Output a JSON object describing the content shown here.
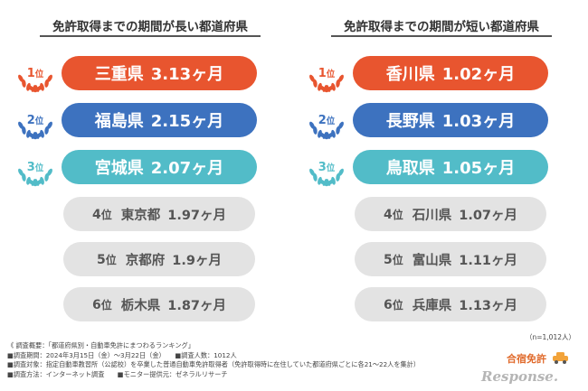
{
  "colors": {
    "rank1": "#e8552f",
    "rank2": "#3d72bf",
    "rank3": "#52bcc8",
    "gray_pill": "#e3e3e3"
  },
  "chart_data": [
    {
      "type": "table",
      "title": "免許取得までの期間が長い都道府県",
      "rank_unit": "位",
      "value_unit": "ヶ月",
      "rows": [
        {
          "rank": 1,
          "prefecture": "三重県",
          "months": 3.13,
          "value_text": "3.13ヶ月"
        },
        {
          "rank": 2,
          "prefecture": "福島県",
          "months": 2.15,
          "value_text": "2.15ヶ月"
        },
        {
          "rank": 3,
          "prefecture": "宮城県",
          "months": 2.07,
          "value_text": "2.07ヶ月"
        },
        {
          "rank": 4,
          "prefecture": "東京都",
          "months": 1.97,
          "value_text": "1.97ヶ月"
        },
        {
          "rank": 5,
          "prefecture": "京都府",
          "months": 1.9,
          "value_text": "1.9ヶ月"
        },
        {
          "rank": 6,
          "prefecture": "栃木県",
          "months": 1.87,
          "value_text": "1.87ヶ月"
        }
      ]
    },
    {
      "type": "table",
      "title": "免許取得までの期間が短い都道府県",
      "rank_unit": "位",
      "value_unit": "ヶ月",
      "rows": [
        {
          "rank": 1,
          "prefecture": "香川県",
          "months": 1.02,
          "value_text": "1.02ヶ月"
        },
        {
          "rank": 2,
          "prefecture": "長野県",
          "months": 1.03,
          "value_text": "1.03ヶ月"
        },
        {
          "rank": 3,
          "prefecture": "鳥取県",
          "months": 1.05,
          "value_text": "1.05ヶ月"
        },
        {
          "rank": 4,
          "prefecture": "石川県",
          "months": 1.07,
          "value_text": "1.07ヶ月"
        },
        {
          "rank": 5,
          "prefecture": "富山県",
          "months": 1.11,
          "value_text": "1.11ヶ月"
        },
        {
          "rank": 6,
          "prefecture": "兵庫県",
          "months": 1.13,
          "value_text": "1.13ヶ月"
        }
      ]
    }
  ],
  "sample_note": "（n=1,012人）",
  "notes": [
    "《 調査概要：「都道府県別・自動車免許にまつわるランキング」",
    "■調査期間：2024年3月15日（金）～3月22日（金）　　■調査人数：1012人",
    "■調査対象：指定自動車教習所（公認校）を卒業した普通自動車免許取得者（免許取得時に在住していた都道府県ごとに各21～22人を集計）",
    "■調査方法：インターネット調査　　■モニター提供元：ゼネラルリサーチ"
  ],
  "logo": {
    "text": "合宿免許"
  },
  "watermark": "Response."
}
